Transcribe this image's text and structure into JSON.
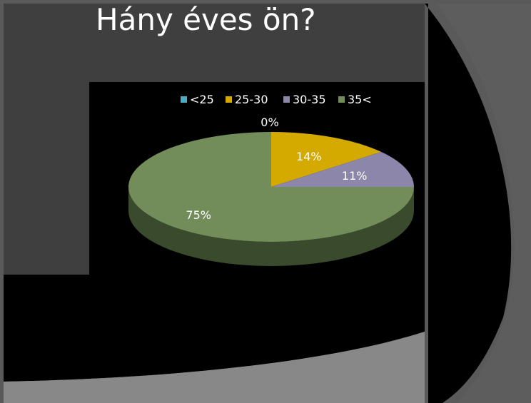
{
  "slide": {
    "title": "Hány éves ön?"
  },
  "colors": {
    "background_frame": "#5a5a5a",
    "panel": "#3f3f3f",
    "black": "#000000",
    "light_gray": "#888888"
  },
  "chart_data": {
    "type": "pie",
    "style": "3d",
    "legend": "top",
    "categories": [
      "<25",
      "25-30",
      "30-35",
      "35<"
    ],
    "values": [
      0,
      14,
      11,
      75
    ],
    "labels": [
      "0%",
      "14%",
      "11%",
      "75%"
    ],
    "colors": [
      "#4bacc6",
      "#d4aa00",
      "#8c86aa",
      "#728c5a"
    ],
    "side_colors": [
      "#2e6a7a",
      "#8a6f00",
      "#5c5874",
      "#3a4a2c"
    ]
  }
}
